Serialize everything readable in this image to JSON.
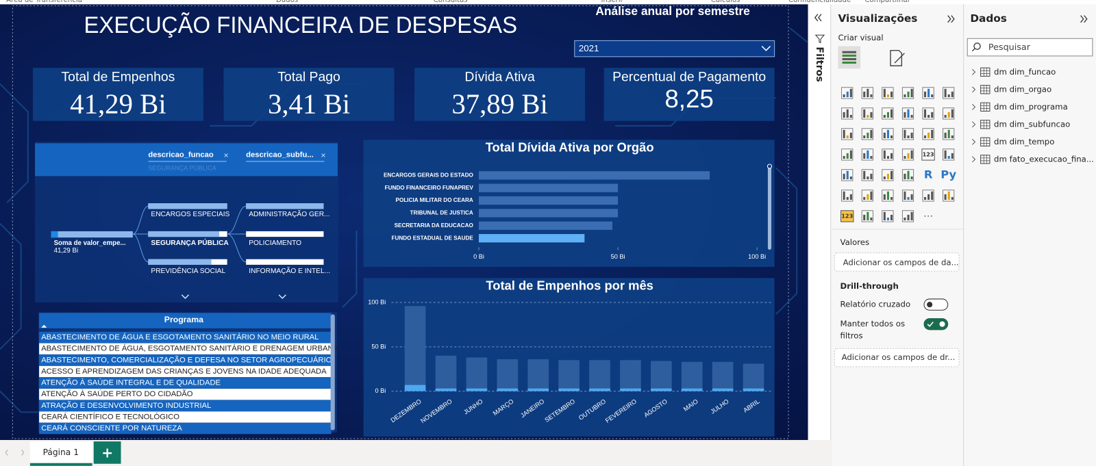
{
  "ribbon_groups": [
    "Área de Transferência",
    "Dados",
    "Consultas",
    "Inserir",
    "Cálculos",
    "Confidencialidade",
    "Compartilhar"
  ],
  "report": {
    "title": "EXECUÇÃO FINANCEIRA DE DESPESAS",
    "slicer_label": "Análise anual por semestre",
    "slicer_value": "2021",
    "kpis": [
      {
        "label": "Total de Empenhos",
        "value": "41,29 Bi"
      },
      {
        "label": "Total Pago",
        "value": "3,41 Bi"
      },
      {
        "label": "Dívida Ativa",
        "value": "37,89 Bi"
      },
      {
        "label": "Percentual de Pagamento",
        "value": "8,25"
      }
    ],
    "decomposition": {
      "fields": [
        "descricao_funcao",
        "descricao_subfu..."
      ],
      "active_filter": "SEGURANÇA PÚBLICA",
      "root_label": "Soma de valor_empe...",
      "root_value": "41,29 Bi",
      "level1": [
        "ENCARGOS ESPECIAIS",
        "SEGURANÇA PÚBLICA",
        "PREVIDÊNCIA SOCIAL"
      ],
      "level2": [
        "ADMINISTRAÇÃO GER...",
        "POLICIAMENTO",
        "INFORMAÇÃO E INTEL..."
      ]
    },
    "programa": {
      "header": "Programa",
      "rows": [
        "ABASTECIMENTO DE ÁGUA E ESGOTAMENTO SANITÁRIO NO MEIO RURAL",
        "ABASTECIMENTO DE ÁGUA, ESGOTAMENTO SANITÁRIO E DRENAGEM URBANA",
        "ABASTECIMENTO, COMERCIALIZAÇÃO E DEFESA NO SETOR AGROPECUÁRIO",
        "ACESSO E APRENDIZAGEM DAS CRIANÇAS E JOVENS NA IDADE ADEQUADA",
        "ATENÇÃO À SAÚDE INTEGRAL E DE QUALIDADE",
        "ATENÇÃO À SAÚDE PERTO DO CIDADÃO",
        "ATRAÇÃO E DESENVOLVIMENTO INDUSTRIAL",
        "CEARÁ CIENTÍFICO E TECNOLÓGICO",
        "CEARÁ CONSCIENTE POR NATUREZA"
      ]
    }
  },
  "chart_data": [
    {
      "type": "bar",
      "orientation": "horizontal",
      "title": "Total Dívida Ativa por Orgão",
      "categories": [
        "ENCARGOS GERAIS DO ESTADO",
        "FUNDO FINANCEIRO FUNAPREV",
        "POLICIA MILITAR DO CEARA",
        "TRIBUNAL DE JUSTICA",
        "SECRETARIA DA EDUCACAO",
        "FUNDO ESTADUAL DE SAUDE"
      ],
      "values": [
        83,
        50,
        50,
        50,
        48,
        38
      ],
      "colors": [
        "#3b6db3",
        "#3b6db3",
        "#3b6db3",
        "#3b6db3",
        "#3b6db3",
        "#5fb0f5"
      ],
      "xlim": [
        0,
        103
      ],
      "xticks": [
        {
          "value": 0,
          "label": "0 Bi"
        },
        {
          "value": 50,
          "label": "50 Bi"
        },
        {
          "value": 100,
          "label": "100 Bi"
        }
      ]
    },
    {
      "type": "column",
      "title": "Total de Empenhos por mês",
      "categories": [
        "DEZEMBRO",
        "NOVEMBRO",
        "JUNHO",
        "MARÇO",
        "JANEIRO",
        "SETEMBRO",
        "OUTUBRO",
        "FEVEREIRO",
        "AGOSTO",
        "MAIO",
        "JULHO",
        "ABRIL"
      ],
      "series": [
        {
          "color": "#2f5e9f",
          "values": [
            96,
            40,
            38,
            36,
            36,
            35,
            35,
            35,
            34,
            33,
            33,
            31
          ]
        },
        {
          "color": "#4ea8f0",
          "values": [
            7,
            3,
            3,
            3,
            3,
            3,
            3,
            3,
            3,
            3,
            3,
            3
          ]
        }
      ],
      "ylim": [
        0,
        106
      ],
      "yticks": [
        {
          "value": 0,
          "label": "0 Bi"
        },
        {
          "value": 50,
          "label": "50 Bi"
        },
        {
          "value": 100,
          "label": "100 Bi"
        }
      ],
      "grid": true
    }
  ],
  "filters_pane": {
    "title": "Filtros"
  },
  "visualizations": {
    "title": "Visualizações",
    "create_visual": "Criar visual",
    "icon_labels": [
      "123",
      "R",
      "Py",
      "123"
    ],
    "more": "···",
    "values_label": "Valores",
    "values_placeholder": "Adicionar os campos de da...",
    "drill_title": "Drill-through",
    "cross_report": "Relatório cruzado",
    "cross_report_on": false,
    "keep_filters": [
      "Manter todos os",
      "filtros"
    ],
    "keep_filters_on": true,
    "drill_placeholder": "Adicionar os campos de dr..."
  },
  "data_pane": {
    "title": "Dados",
    "search": "Pesquisar",
    "tables": [
      "dm dim_funcao",
      "dm dim_orgao",
      "dm dim_programa",
      "dm dim_subfuncao",
      "dm dim_tempo",
      "dm fato_execucao_fina..."
    ]
  },
  "pages": {
    "tabs": [
      "Página 1"
    ],
    "add": "+"
  }
}
